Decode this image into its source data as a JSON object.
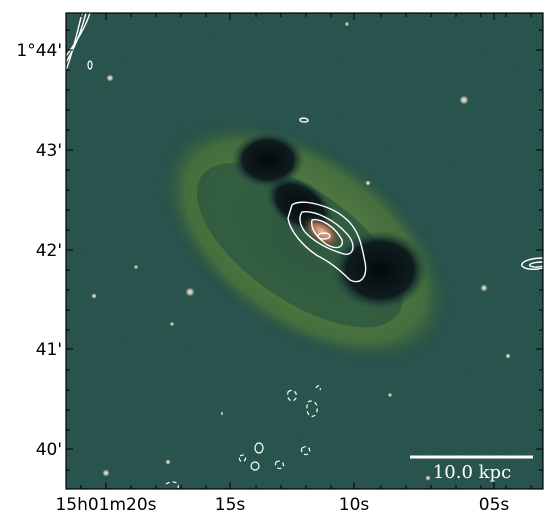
{
  "image": {
    "description_colors": {
      "background": "#1f4a44",
      "outer_ring": "#3d6a3c",
      "ring_highlight": "#5d7f40",
      "dark_lobes": "#0a1418",
      "core": "#b08060",
      "contour": "#ffffff"
    }
  },
  "axes": {
    "dec_ticks": [
      {
        "label": "1°44'",
        "value": "1°44'"
      },
      {
        "label": "43'",
        "value": "43'"
      },
      {
        "label": "42'",
        "value": "42'"
      },
      {
        "label": "41'",
        "value": "41'"
      },
      {
        "label": "40'",
        "value": "40'"
      }
    ],
    "ra_ticks": [
      {
        "label": "15h01m20s",
        "value": "15h01m20s"
      },
      {
        "label": "15s",
        "value": "15s"
      },
      {
        "label": "10s",
        "value": "10s"
      },
      {
        "label": "05s",
        "value": "05s"
      }
    ]
  },
  "scale_bar": {
    "label": "10.0 kpc"
  }
}
